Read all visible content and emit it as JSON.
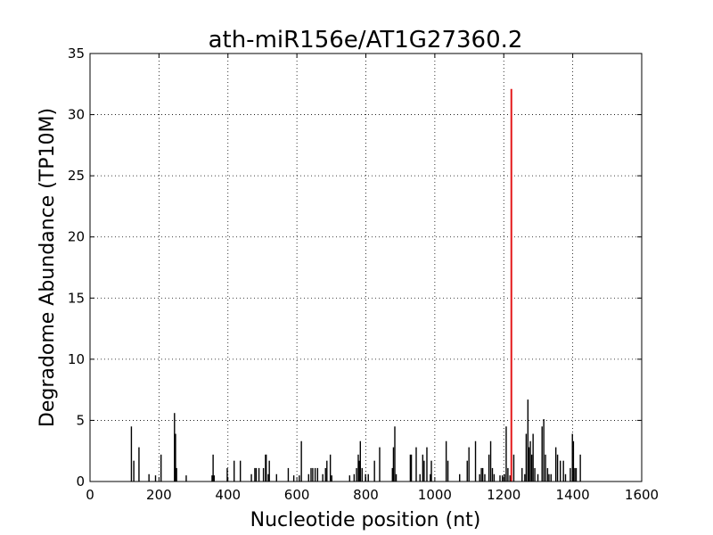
{
  "chart_data": {
    "type": "bar",
    "title": "ath-miR156e/AT1G27360.2",
    "xlabel": "Nucleotide position (nt)",
    "ylabel": "Degradome Abundance (TP10M)",
    "xlim": [
      0,
      1600
    ],
    "ylim": [
      0,
      35
    ],
    "xticks": [
      0,
      200,
      400,
      600,
      800,
      1000,
      1200,
      1400,
      1600
    ],
    "yticks": [
      0,
      5,
      10,
      15,
      20,
      25,
      30,
      35
    ],
    "grid": true,
    "series": [
      {
        "color": "#000000",
        "x": [
          120,
          127,
          142,
          171,
          190,
          206,
          245,
          248,
          251,
          279,
          354,
          357,
          360,
          398,
          418,
          436,
          468,
          478,
          482,
          490,
          503,
          509,
          511,
          517,
          520,
          541,
          575,
          591,
          607,
          613,
          634,
          641,
          646,
          653,
          660,
          675,
          683,
          687,
          697,
          701,
          753,
          766,
          773,
          778,
          781,
          784,
          789,
          799,
          807,
          825,
          840,
          877,
          880,
          884,
          888,
          929,
          932,
          946,
          957,
          965,
          969,
          977,
          987,
          990,
          1033,
          1038,
          1072,
          1094,
          1099,
          1118,
          1130,
          1135,
          1139,
          1145,
          1157,
          1162,
          1167,
          1172,
          1189,
          1196,
          1202,
          1207,
          1212,
          1218,
          1229,
          1253,
          1261,
          1265,
          1270,
          1273,
          1277,
          1281,
          1285,
          1290,
          1299,
          1311,
          1316,
          1321,
          1327,
          1331,
          1337,
          1351,
          1356,
          1364,
          1373,
          1379,
          1393,
          1399,
          1402,
          1406,
          1410,
          1422
        ],
        "values": [
          4.5,
          1.7,
          2.8,
          0.6,
          0.5,
          2.2,
          5.6,
          3.9,
          1.1,
          0.5,
          0.5,
          2.2,
          0.5,
          1.1,
          1.7,
          1.7,
          0.6,
          1.1,
          1.1,
          1.1,
          1.1,
          2.2,
          2.2,
          0.6,
          1.7,
          0.6,
          1.1,
          0.5,
          0.5,
          3.3,
          0.6,
          1.1,
          1.1,
          1.1,
          1.1,
          0.6,
          1.1,
          1.7,
          2.2,
          0.5,
          0.5,
          0.6,
          1.1,
          2.2,
          1.7,
          3.3,
          1.1,
          0.6,
          0.6,
          1.7,
          2.8,
          1.1,
          2.8,
          4.5,
          0.6,
          2.2,
          2.2,
          2.8,
          0.6,
          2.2,
          1.7,
          2.8,
          0.6,
          1.7,
          3.3,
          1.7,
          0.6,
          1.7,
          2.8,
          3.3,
          0.6,
          1.1,
          1.1,
          0.6,
          2.2,
          3.3,
          1.1,
          0.6,
          0.5,
          0.5,
          0.6,
          4.5,
          1.1,
          0.5,
          2.2,
          1.1,
          0.6,
          3.9,
          6.7,
          2.8,
          3.3,
          2.2,
          3.9,
          1.1,
          0.6,
          4.5,
          5.1,
          2.2,
          1.1,
          0.6,
          0.6,
          2.8,
          2.2,
          1.7,
          1.7,
          0.6,
          1.1,
          3.9,
          3.3,
          1.1,
          1.1,
          2.2
        ]
      },
      {
        "color": "#e41a1c",
        "x": [
          1222
        ],
        "values": [
          32.1
        ]
      }
    ]
  }
}
